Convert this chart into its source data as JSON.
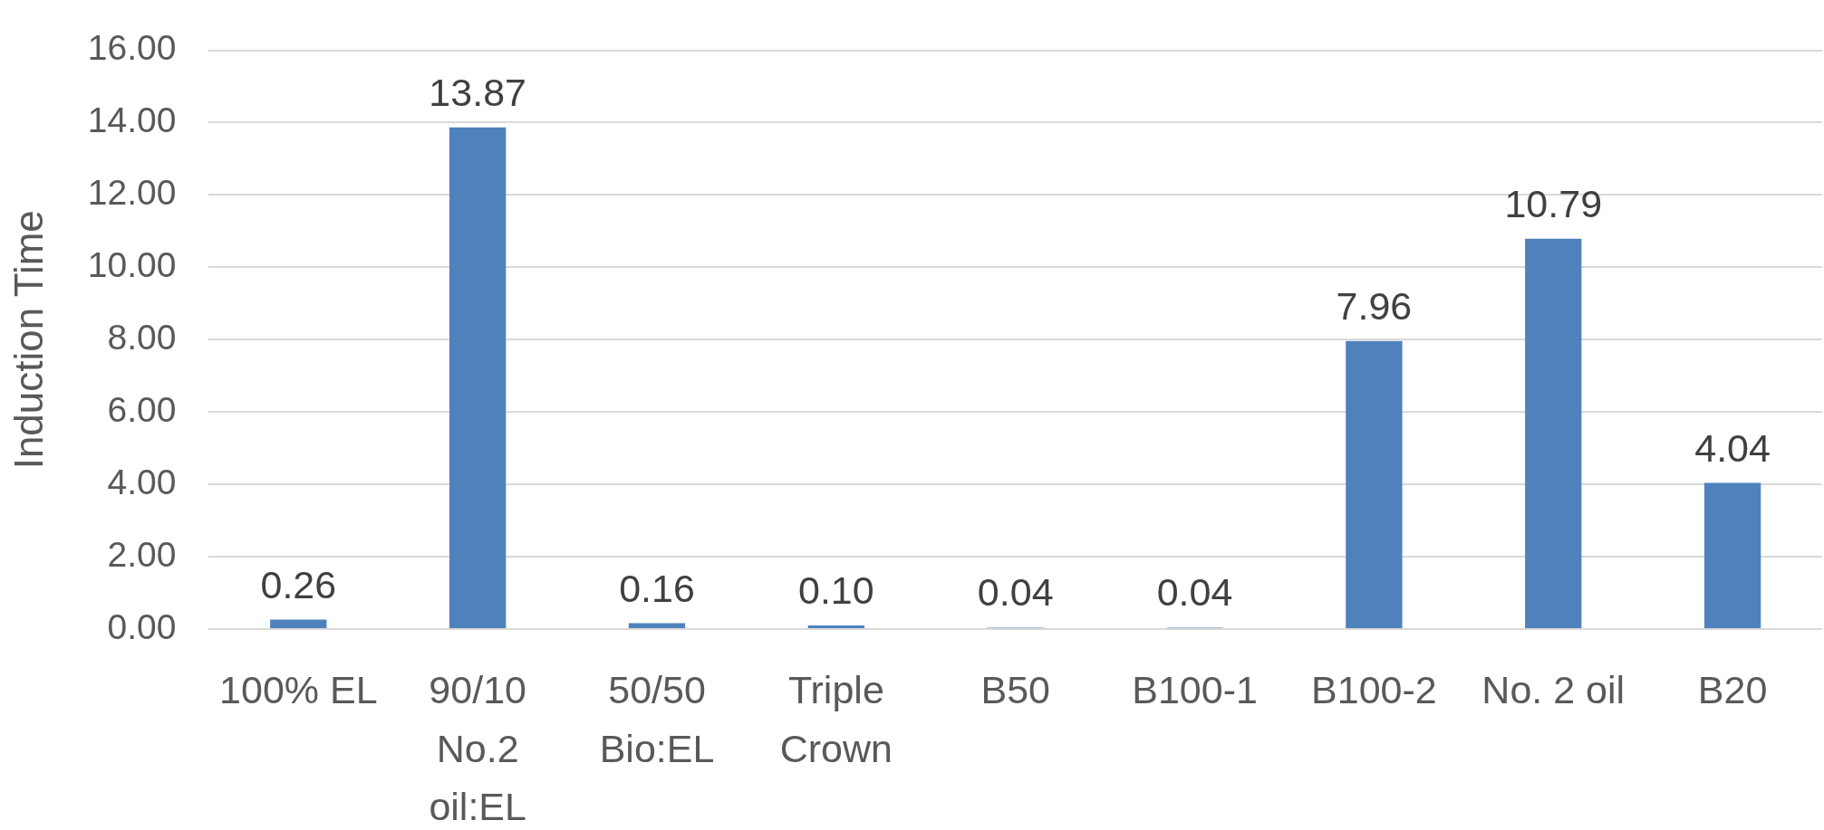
{
  "chart_data": {
    "type": "bar",
    "ylabel": "Induction Time",
    "categories": [
      "100% EL",
      "90/10 No.2 oil:EL",
      "50/50 Bio:EL",
      "Triple Crown",
      "B50",
      "B100-1",
      "B100-2",
      "No. 2 oil",
      "B20"
    ],
    "values": [
      0.26,
      13.87,
      0.16,
      0.1,
      0.04,
      0.04,
      7.96,
      10.79,
      4.04
    ],
    "value_labels": [
      "0.26",
      "13.87",
      "0.16",
      "0.10",
      "0.04",
      "0.04",
      "7.96",
      "10.79",
      "4.04"
    ],
    "color": "#4f81bd",
    "ylim": [
      0,
      16
    ],
    "yticks": [
      {
        "value": 0,
        "label": "0.00"
      },
      {
        "value": 2,
        "label": "2.00"
      },
      {
        "value": 4,
        "label": "4.00"
      },
      {
        "value": 6,
        "label": "6.00"
      },
      {
        "value": 8,
        "label": "8.00"
      },
      {
        "value": 10,
        "label": "10.00"
      },
      {
        "value": 12,
        "label": "12.00"
      },
      {
        "value": 14,
        "label": "14.00"
      },
      {
        "value": 16,
        "label": "16.00"
      }
    ],
    "grid": "y"
  }
}
